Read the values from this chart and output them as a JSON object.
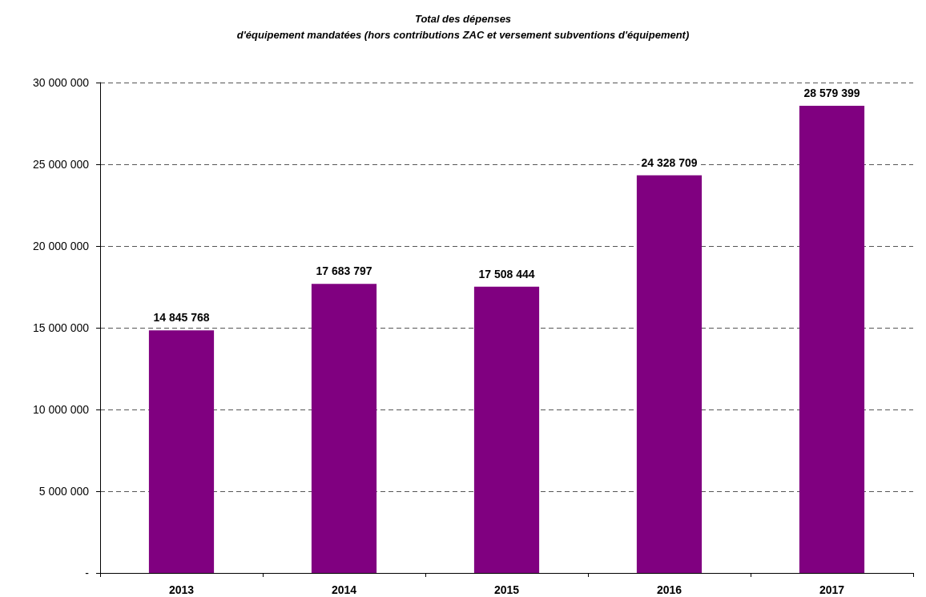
{
  "chart_data": {
    "type": "bar",
    "title": "Total des dépenses\nd'équipement mandatées (hors contributions ZAC et versement subventions d'équipement)",
    "categories": [
      "2013",
      "2014",
      "2015",
      "2016",
      "2017"
    ],
    "values": [
      14845768,
      17683797,
      17508444,
      24328709,
      28579399
    ],
    "value_labels": [
      "14 845 768",
      "17 683 797",
      "17 508 444",
      "24 328 709",
      "28 579 399"
    ],
    "color": "#800080",
    "ylim": [
      0,
      30000000
    ],
    "yticks": [
      {
        "value": 0,
        "label": "-"
      },
      {
        "value": 5000000,
        "label": "5 000 000"
      },
      {
        "value": 10000000,
        "label": "10 000 000"
      },
      {
        "value": 15000000,
        "label": "15 000 000"
      },
      {
        "value": 20000000,
        "label": "20 000 000"
      },
      {
        "value": 25000000,
        "label": "25 000 000"
      },
      {
        "value": 30000000,
        "label": "30 000 000"
      }
    ],
    "grid": "y"
  }
}
